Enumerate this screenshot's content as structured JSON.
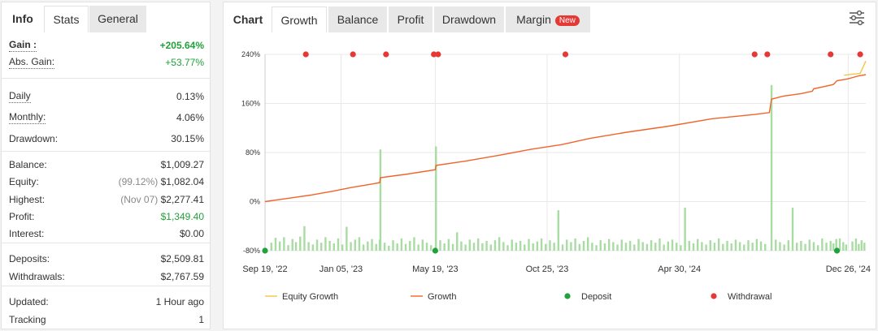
{
  "left_tabs": {
    "info": "Info",
    "stats": "Stats",
    "general": "General"
  },
  "stats": [
    {
      "key": "gain",
      "label": "Gain :",
      "value": "+205.64%",
      "style": "green-bold",
      "label_style": "bold-dotted"
    },
    {
      "key": "abs_gain",
      "label": "Abs. Gain:",
      "value": "+53.77%",
      "style": "green",
      "label_style": "dotted"
    },
    {
      "key": "daily",
      "label": "Daily",
      "value": "0.13%",
      "label_style": "dotted"
    },
    {
      "key": "monthly",
      "label": "Monthly:",
      "value": "4.06%",
      "label_style": "dotted"
    },
    {
      "key": "drawdown",
      "label": "Drawdown:",
      "value": "30.15%"
    },
    {
      "key": "balance",
      "label": "Balance:",
      "value": "$1,009.27"
    },
    {
      "key": "equity",
      "label": "Equity:",
      "note": "(99.12%)",
      "value": "$1,082.04"
    },
    {
      "key": "highest",
      "label": "Highest:",
      "note": "(Nov 07)",
      "value": "$2,277.41"
    },
    {
      "key": "profit",
      "label": "Profit:",
      "value": "$1,349.40",
      "style": "green"
    },
    {
      "key": "interest",
      "label": "Interest:",
      "value": "$0.00"
    },
    {
      "key": "deposits",
      "label": "Deposits:",
      "value": "$2,509.81"
    },
    {
      "key": "withdrawals",
      "label": "Withdrawals:",
      "value": "$2,767.59"
    },
    {
      "key": "updated",
      "label": "Updated:",
      "value": "1 Hour ago"
    },
    {
      "key": "tracking",
      "label": "Tracking",
      "value": "1"
    }
  ],
  "chart_tabs": {
    "chart": "Chart",
    "growth": "Growth",
    "balance": "Balance",
    "profit": "Profit",
    "drawdown": "Drawdown",
    "margin": "Margin",
    "new_badge": "New"
  },
  "colors": {
    "growth": "#f0642a",
    "equity": "#f5c542",
    "bars": "#a9dca3",
    "deposit": "#22a03b",
    "withdrawal": "#e53935",
    "grid": "#e8e8e8",
    "green_text": "#22a03b"
  },
  "chart_data": {
    "type": "line",
    "ylim": [
      -80,
      240
    ],
    "y_ticks": [
      240,
      160,
      80,
      0,
      -80
    ],
    "y_tick_labels": [
      "240%",
      "160%",
      "80%",
      "0%",
      "-80%"
    ],
    "x_range": [
      "2022-09-19",
      "2025-01-20"
    ],
    "x_tick_labels": [
      {
        "date": "2022-09-19",
        "label": "Sep 19, '22"
      },
      {
        "date": "2023-01-05",
        "label": "Jan 05, '23"
      },
      {
        "date": "2023-05-19",
        "label": "May 19, '23"
      },
      {
        "date": "2023-10-25",
        "label": "Oct 25, '23"
      },
      {
        "date": "2024-04-30",
        "label": "Apr 30, '24"
      },
      {
        "date": "2024-12-26",
        "label": "Dec 26, '24"
      }
    ],
    "series": [
      {
        "name": "Growth",
        "points": [
          [
            "2022-09-19",
            0
          ],
          [
            "2022-10-20",
            5
          ],
          [
            "2022-11-25",
            11
          ],
          [
            "2022-12-25",
            17
          ],
          [
            "2023-01-20",
            23
          ],
          [
            "2023-02-20",
            29
          ],
          [
            "2023-03-01",
            31
          ],
          [
            "2023-03-02",
            39
          ],
          [
            "2023-04-10",
            45
          ],
          [
            "2023-05-19",
            52
          ],
          [
            "2023-05-20",
            59
          ],
          [
            "2023-07-01",
            66
          ],
          [
            "2023-08-15",
            75
          ],
          [
            "2023-10-01",
            85
          ],
          [
            "2023-11-15",
            93
          ],
          [
            "2023-12-25",
            103
          ],
          [
            "2024-02-15",
            113
          ],
          [
            "2024-04-15",
            123
          ],
          [
            "2024-06-15",
            135
          ],
          [
            "2024-08-15",
            142
          ],
          [
            "2024-09-05",
            145
          ],
          [
            "2024-09-08",
            167
          ],
          [
            "2024-09-25",
            172
          ],
          [
            "2024-10-20",
            176
          ],
          [
            "2024-11-05",
            180
          ],
          [
            "2024-11-07",
            184
          ],
          [
            "2024-11-20",
            187
          ],
          [
            "2024-12-05",
            191
          ],
          [
            "2024-12-10",
            197
          ],
          [
            "2024-12-25",
            200
          ],
          [
            "2025-01-10",
            205
          ],
          [
            "2025-01-20",
            207
          ]
        ]
      },
      {
        "name": "Equity Growth",
        "points": [
          [
            "2024-12-20",
            206
          ],
          [
            "2025-01-12",
            209
          ],
          [
            "2025-01-20",
            229
          ]
        ]
      }
    ],
    "deposits": [
      {
        "date": "2022-09-19",
        "value": -80
      },
      {
        "date": "2023-05-19",
        "value": -80
      },
      {
        "date": "2024-12-10",
        "value": -80
      }
    ],
    "withdrawals": [
      {
        "date": "2022-11-16",
        "value": 240
      },
      {
        "date": "2023-01-22",
        "value": 240
      },
      {
        "date": "2023-03-10",
        "value": 240
      },
      {
        "date": "2023-05-17",
        "value": 240
      },
      {
        "date": "2023-05-23",
        "value": 240
      },
      {
        "date": "2023-11-20",
        "value": 240
      },
      {
        "date": "2024-08-15",
        "value": 240
      },
      {
        "date": "2024-09-02",
        "value": 240
      },
      {
        "date": "2024-12-01",
        "value": 240
      },
      {
        "date": "2025-01-12",
        "value": 240
      }
    ],
    "bars_baseline": -80,
    "bars": [
      [
        "2022-09-28",
        -67
      ],
      [
        "2022-10-04",
        -59
      ],
      [
        "2022-10-10",
        -65
      ],
      [
        "2022-10-16",
        -58
      ],
      [
        "2022-10-22",
        -71
      ],
      [
        "2022-10-28",
        -61
      ],
      [
        "2022-11-02",
        -66
      ],
      [
        "2022-11-08",
        -57
      ],
      [
        "2022-11-14",
        -40
      ],
      [
        "2022-11-20",
        -66
      ],
      [
        "2022-11-26",
        -70
      ],
      [
        "2022-12-02",
        -62
      ],
      [
        "2022-12-08",
        -67
      ],
      [
        "2022-12-14",
        -58
      ],
      [
        "2022-12-20",
        -64
      ],
      [
        "2022-12-26",
        -68
      ],
      [
        "2023-01-01",
        -60
      ],
      [
        "2023-01-07",
        -70
      ],
      [
        "2023-01-13",
        -41
      ],
      [
        "2023-01-19",
        -66
      ],
      [
        "2023-01-25",
        -62
      ],
      [
        "2023-01-31",
        -58
      ],
      [
        "2023-02-06",
        -70
      ],
      [
        "2023-02-12",
        -65
      ],
      [
        "2023-02-18",
        -61
      ],
      [
        "2023-02-24",
        -69
      ],
      [
        "2023-03-01",
        -62
      ],
      [
        "2023-03-02",
        85
      ],
      [
        "2023-03-08",
        -67
      ],
      [
        "2023-03-14",
        -72
      ],
      [
        "2023-03-20",
        -63
      ],
      [
        "2023-03-26",
        -68
      ],
      [
        "2023-04-01",
        -60
      ],
      [
        "2023-04-07",
        -69
      ],
      [
        "2023-04-13",
        -64
      ],
      [
        "2023-04-19",
        -58
      ],
      [
        "2023-04-25",
        -70
      ],
      [
        "2023-05-01",
        -62
      ],
      [
        "2023-05-07",
        -67
      ],
      [
        "2023-05-13",
        -71
      ],
      [
        "2023-05-20",
        90
      ],
      [
        "2023-05-26",
        -63
      ],
      [
        "2023-06-01",
        -68
      ],
      [
        "2023-06-07",
        -61
      ],
      [
        "2023-06-13",
        -69
      ],
      [
        "2023-06-19",
        -50
      ],
      [
        "2023-06-25",
        -65
      ],
      [
        "2023-07-01",
        -70
      ],
      [
        "2023-07-07",
        -62
      ],
      [
        "2023-07-13",
        -67
      ],
      [
        "2023-07-19",
        -60
      ],
      [
        "2023-07-25",
        -68
      ],
      [
        "2023-07-31",
        -64
      ],
      [
        "2023-08-06",
        -70
      ],
      [
        "2023-08-12",
        -63
      ],
      [
        "2023-08-18",
        -58
      ],
      [
        "2023-08-24",
        -66
      ],
      [
        "2023-08-30",
        -71
      ],
      [
        "2023-09-05",
        -62
      ],
      [
        "2023-09-11",
        -67
      ],
      [
        "2023-09-17",
        -64
      ],
      [
        "2023-09-23",
        -70
      ],
      [
        "2023-09-29",
        -61
      ],
      [
        "2023-10-05",
        -68
      ],
      [
        "2023-10-11",
        -65
      ],
      [
        "2023-10-17",
        -60
      ],
      [
        "2023-10-23",
        -69
      ],
      [
        "2023-10-29",
        -63
      ],
      [
        "2023-11-04",
        -67
      ],
      [
        "2023-11-10",
        -14
      ],
      [
        "2023-11-16",
        -70
      ],
      [
        "2023-11-22",
        -62
      ],
      [
        "2023-11-28",
        -66
      ],
      [
        "2023-12-04",
        -60
      ],
      [
        "2023-12-10",
        -69
      ],
      [
        "2023-12-16",
        -64
      ],
      [
        "2023-12-22",
        -58
      ],
      [
        "2023-12-28",
        -67
      ],
      [
        "2024-01-03",
        -71
      ],
      [
        "2024-01-09",
        -63
      ],
      [
        "2024-01-15",
        -68
      ],
      [
        "2024-01-21",
        -61
      ],
      [
        "2024-01-27",
        -66
      ],
      [
        "2024-02-02",
        -70
      ],
      [
        "2024-02-08",
        -62
      ],
      [
        "2024-02-14",
        -67
      ],
      [
        "2024-02-20",
        -64
      ],
      [
        "2024-02-26",
        -70
      ],
      [
        "2024-03-03",
        -61
      ],
      [
        "2024-03-09",
        -66
      ],
      [
        "2024-03-15",
        -69
      ],
      [
        "2024-03-21",
        -63
      ],
      [
        "2024-03-27",
        -67
      ],
      [
        "2024-04-02",
        -60
      ],
      [
        "2024-04-08",
        -70
      ],
      [
        "2024-04-14",
        -65
      ],
      [
        "2024-04-20",
        -62
      ],
      [
        "2024-04-26",
        -67
      ],
      [
        "2024-05-02",
        -71
      ],
      [
        "2024-05-08",
        -10
      ],
      [
        "2024-05-14",
        -64
      ],
      [
        "2024-05-20",
        -68
      ],
      [
        "2024-05-26",
        -61
      ],
      [
        "2024-06-01",
        -66
      ],
      [
        "2024-06-07",
        -70
      ],
      [
        "2024-06-13",
        -63
      ],
      [
        "2024-06-19",
        -67
      ],
      [
        "2024-06-25",
        -60
      ],
      [
        "2024-07-01",
        -69
      ],
      [
        "2024-07-07",
        -64
      ],
      [
        "2024-07-13",
        -68
      ],
      [
        "2024-07-19",
        -62
      ],
      [
        "2024-07-25",
        -66
      ],
      [
        "2024-07-31",
        -70
      ],
      [
        "2024-08-06",
        -63
      ],
      [
        "2024-08-12",
        -67
      ],
      [
        "2024-08-18",
        -61
      ],
      [
        "2024-08-24",
        -65
      ],
      [
        "2024-08-30",
        -69
      ],
      [
        "2024-09-08",
        190
      ],
      [
        "2024-09-14",
        -62
      ],
      [
        "2024-09-20",
        -66
      ],
      [
        "2024-09-26",
        -70
      ],
      [
        "2024-10-02",
        -63
      ],
      [
        "2024-10-08",
        -10
      ],
      [
        "2024-10-14",
        -67
      ],
      [
        "2024-10-20",
        -64
      ],
      [
        "2024-10-26",
        -69
      ],
      [
        "2024-11-01",
        -62
      ],
      [
        "2024-11-07",
        -66
      ],
      [
        "2024-11-13",
        -71
      ],
      [
        "2024-11-19",
        -60
      ],
      [
        "2024-11-25",
        -67
      ],
      [
        "2024-12-01",
        -64
      ],
      [
        "2024-12-05",
        -68
      ],
      [
        "2024-12-09",
        -61
      ],
      [
        "2024-12-14",
        -60
      ],
      [
        "2024-12-19",
        -66
      ],
      [
        "2024-12-23",
        -70
      ],
      [
        "2025-01-01",
        -65
      ],
      [
        "2025-01-06",
        -60
      ],
      [
        "2025-01-10",
        -69
      ],
      [
        "2025-01-14",
        -63
      ],
      [
        "2025-01-18",
        -67
      ]
    ],
    "legend": [
      {
        "name": "Equity Growth",
        "marker": "line",
        "color": "#f5c542"
      },
      {
        "name": "Growth",
        "marker": "line",
        "color": "#f0642a"
      },
      {
        "name": "Deposit",
        "marker": "dot",
        "color": "#22a03b"
      },
      {
        "name": "Withdrawal",
        "marker": "dot",
        "color": "#e53935"
      }
    ]
  }
}
